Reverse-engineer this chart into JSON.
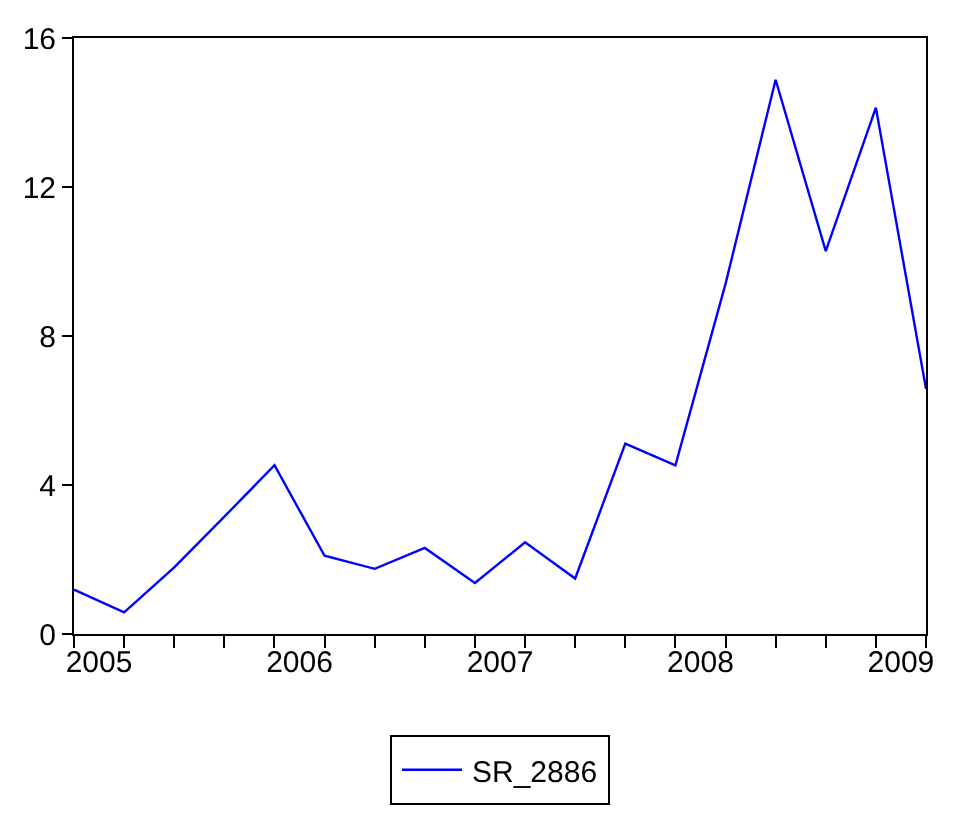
{
  "chart_data": {
    "type": "line",
    "x": [
      2004.875,
      2005.125,
      2005.375,
      2005.625,
      2005.875,
      2006.125,
      2006.375,
      2006.625,
      2006.875,
      2007.125,
      2007.375,
      2007.625,
      2007.875,
      2008.125,
      2008.375,
      2008.625,
      2008.875,
      2009.125
    ],
    "series": [
      {
        "name": "SR_2886",
        "color": "#0000ff",
        "values": [
          1.19,
          0.58,
          1.79,
          3.15,
          4.53,
          2.1,
          1.75,
          2.31,
          1.37,
          2.46,
          1.49,
          5.11,
          4.53,
          9.4,
          14.88,
          10.28,
          14.13,
          6.58
        ]
      }
    ],
    "xlim": [
      2004.875,
      2009.125
    ],
    "xticks": [
      2005,
      2006,
      2007,
      2008,
      2009,
      {
        "value": 2004.875,
        "label": null
      },
      {
        "value": 2005.125,
        "label": null
      },
      {
        "value": 2005.375,
        "label": null
      },
      {
        "value": 2005.625,
        "label": null
      },
      {
        "value": 2005.875,
        "label": null
      },
      {
        "value": 2006.125,
        "label": null
      },
      {
        "value": 2006.375,
        "label": null
      },
      {
        "value": 2006.625,
        "label": null
      },
      {
        "value": 2006.875,
        "label": null
      },
      {
        "value": 2007.125,
        "label": null
      },
      {
        "value": 2007.375,
        "label": null
      },
      {
        "value": 2007.625,
        "label": null
      },
      {
        "value": 2007.875,
        "label": null
      },
      {
        "value": 2008.125,
        "label": null
      },
      {
        "value": 2008.375,
        "label": null
      },
      {
        "value": 2008.625,
        "label": null
      },
      {
        "value": 2008.875,
        "label": null
      },
      {
        "value": 2009.125,
        "label": null
      }
    ],
    "ylim": [
      0,
      16
    ],
    "yticks": [
      0,
      4,
      8,
      12,
      16
    ],
    "legend": "bottom",
    "marker": "none",
    "line_style": "solid"
  }
}
